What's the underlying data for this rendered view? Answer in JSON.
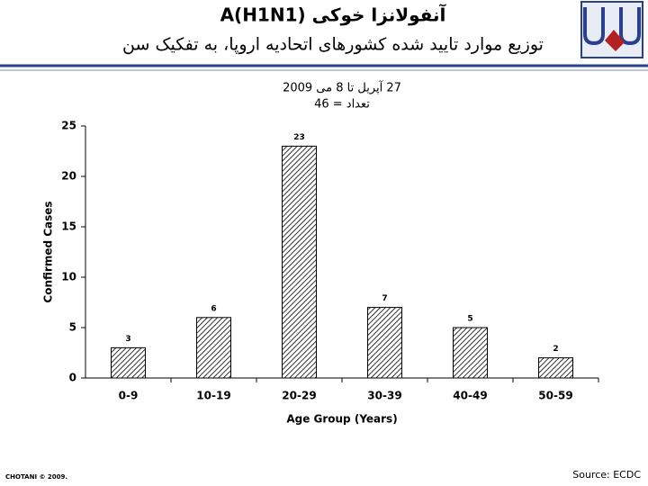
{
  "slide": {
    "title": "آنفولانزا خوکی A(H1N1)",
    "subtitle": "توزیع موارد تایید شده کشورهای اتحادیه اروپا، به تفکیک سن",
    "credit": "CHOTANI © 2009.",
    "source": "Source: ECDC"
  },
  "chart_data": {
    "type": "bar",
    "title": "27 آپریل تا 8 می 2009",
    "subtitle": "تعداد = 46",
    "x_label": "Age Group (Years)",
    "y_label": "Confirmed Cases",
    "categories": [
      "0-9",
      "10-19",
      "20-29",
      "30-39",
      "40-49",
      "50-59"
    ],
    "values": [
      3,
      6,
      23,
      7,
      5,
      2
    ],
    "color": "#000000",
    "ylim": [
      0,
      25
    ],
    "yticks": [
      0,
      5,
      10,
      15,
      20,
      25
    ],
    "grid": false
  }
}
